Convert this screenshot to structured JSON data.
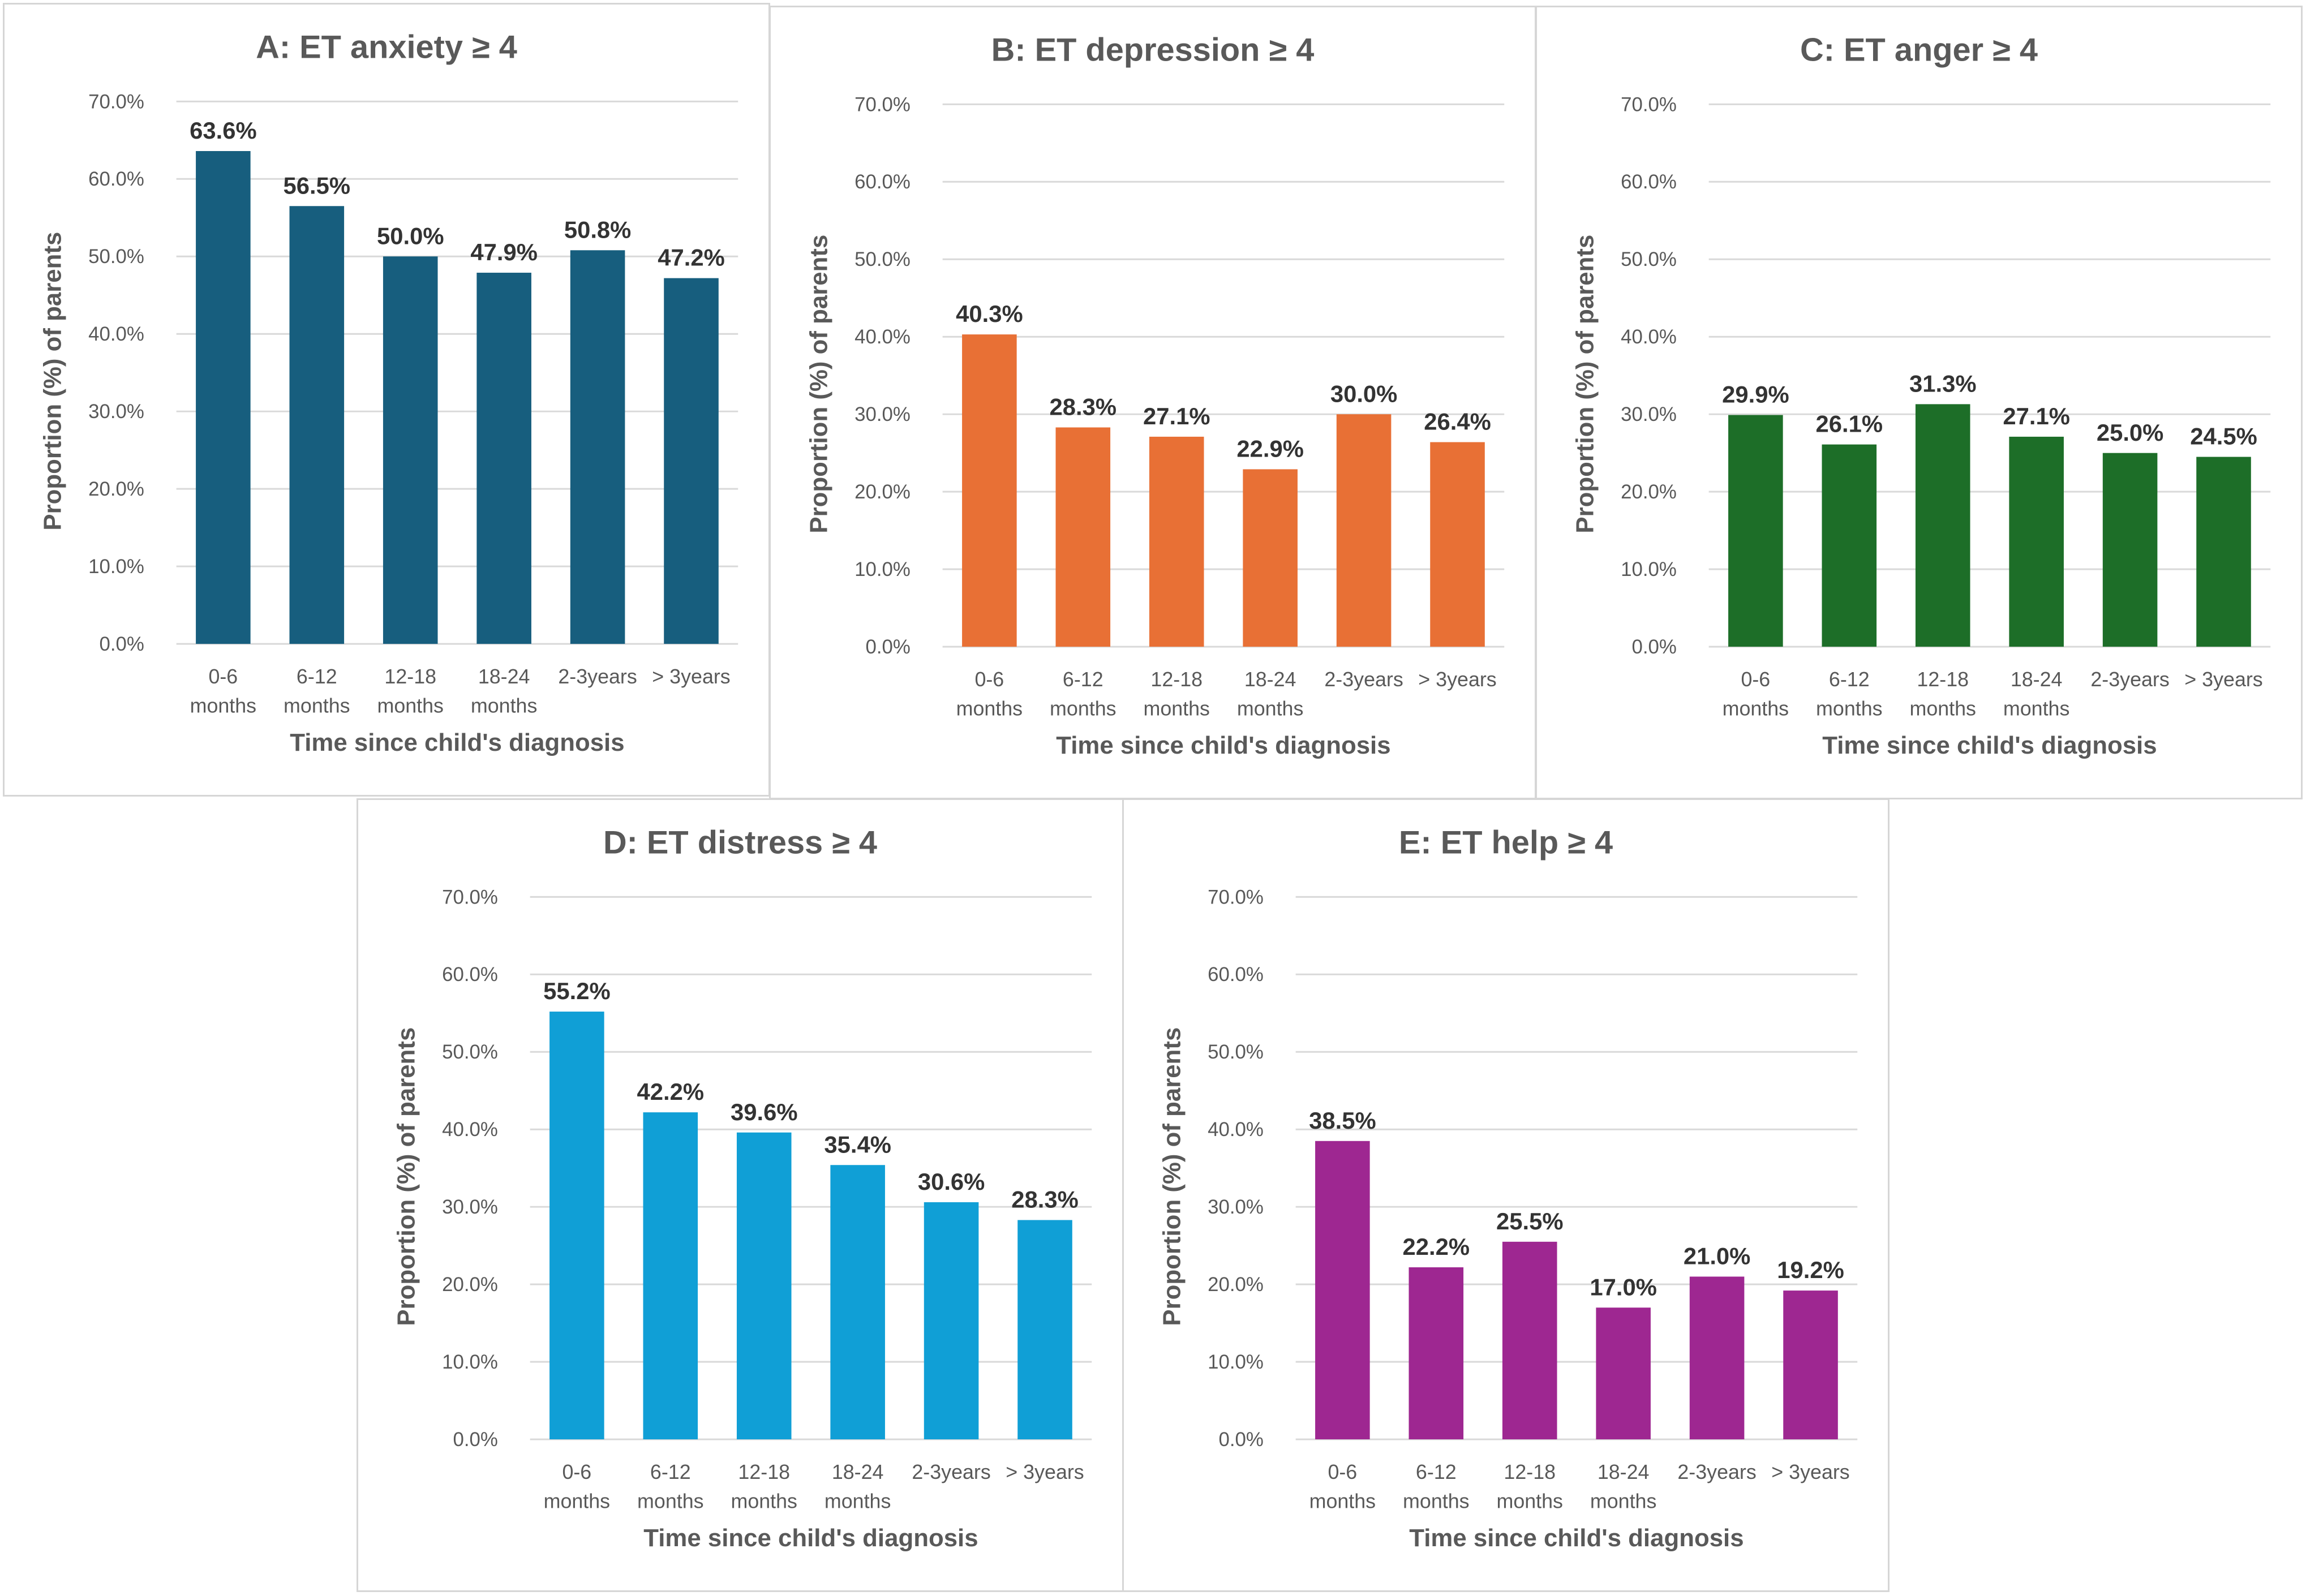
{
  "chart_data": [
    {
      "id": "A",
      "type": "bar",
      "title": "A: ET anxiety ≥ 4",
      "xlabel": "Time since child's diagnosis",
      "ylabel": "Proportion (%) of parents",
      "categories": [
        [
          "0-6",
          "months"
        ],
        [
          "6-12",
          "months"
        ],
        [
          "12-18",
          "months"
        ],
        [
          "18-24",
          "months"
        ],
        [
          "2-3years"
        ],
        [
          "> 3years"
        ]
      ],
      "values": [
        63.6,
        56.5,
        50.0,
        47.9,
        50.8,
        47.2
      ],
      "value_labels": [
        "63.6%",
        "56.5%",
        "50.0%",
        "47.9%",
        "50.8%",
        "47.2%"
      ],
      "yticks": [
        "0.0%",
        "10.0%",
        "20.0%",
        "30.0%",
        "40.0%",
        "50.0%",
        "60.0%",
        "70.0%"
      ],
      "ylim": [
        0,
        70
      ],
      "grid": true,
      "color": "#175e7e"
    },
    {
      "id": "B",
      "type": "bar",
      "title": "B: ET depression ≥ 4",
      "xlabel": "Time since child's diagnosis",
      "ylabel": "Proportion (%) of parents",
      "categories": [
        [
          "0-6",
          "months"
        ],
        [
          "6-12",
          "months"
        ],
        [
          "12-18",
          "months"
        ],
        [
          "18-24",
          "months"
        ],
        [
          "2-3years"
        ],
        [
          "> 3years"
        ]
      ],
      "values": [
        40.3,
        28.3,
        27.1,
        22.9,
        30.0,
        26.4
      ],
      "value_labels": [
        "40.3%",
        "28.3%",
        "27.1%",
        "22.9%",
        "30.0%",
        "26.4%"
      ],
      "yticks": [
        "0.0%",
        "10.0%",
        "20.0%",
        "30.0%",
        "40.0%",
        "50.0%",
        "60.0%",
        "70.0%"
      ],
      "ylim": [
        0,
        70
      ],
      "grid": true,
      "color": "#e87035"
    },
    {
      "id": "C",
      "type": "bar",
      "title": "C: ET anger ≥ 4",
      "xlabel": "Time since child's diagnosis",
      "ylabel": "Proportion (%) of parents",
      "categories": [
        [
          "0-6",
          "months"
        ],
        [
          "6-12",
          "months"
        ],
        [
          "12-18",
          "months"
        ],
        [
          "18-24",
          "months"
        ],
        [
          "2-3years"
        ],
        [
          "> 3years"
        ]
      ],
      "values": [
        29.9,
        26.1,
        31.3,
        27.1,
        25.0,
        24.5
      ],
      "value_labels": [
        "29.9%",
        "26.1%",
        "31.3%",
        "27.1%",
        "25.0%",
        "24.5%"
      ],
      "yticks": [
        "0.0%",
        "10.0%",
        "20.0%",
        "30.0%",
        "40.0%",
        "50.0%",
        "60.0%",
        "70.0%"
      ],
      "ylim": [
        0,
        70
      ],
      "grid": true,
      "color": "#1d6e28"
    },
    {
      "id": "D",
      "type": "bar",
      "title": "D: ET distress ≥ 4",
      "xlabel": "Time since child's diagnosis",
      "ylabel": "Proportion (%) of parents",
      "categories": [
        [
          "0-6",
          "months"
        ],
        [
          "6-12",
          "months"
        ],
        [
          "12-18",
          "months"
        ],
        [
          "18-24",
          "months"
        ],
        [
          "2-3years"
        ],
        [
          "> 3years"
        ]
      ],
      "values": [
        55.2,
        42.2,
        39.6,
        35.4,
        30.6,
        28.3
      ],
      "value_labels": [
        "55.2%",
        "42.2%",
        "39.6%",
        "35.4%",
        "30.6%",
        "28.3%"
      ],
      "yticks": [
        "0.0%",
        "10.0%",
        "20.0%",
        "30.0%",
        "40.0%",
        "50.0%",
        "60.0%",
        "70.0%"
      ],
      "ylim": [
        0,
        70
      ],
      "grid": true,
      "color": "#109fd6"
    },
    {
      "id": "E",
      "type": "bar",
      "title": "E: ET help ≥ 4",
      "xlabel": "Time since child's diagnosis",
      "ylabel": "Proportion (%) of parents",
      "categories": [
        [
          "0-6",
          "months"
        ],
        [
          "6-12",
          "months"
        ],
        [
          "12-18",
          "months"
        ],
        [
          "18-24",
          "months"
        ],
        [
          "2-3years"
        ],
        [
          "> 3years"
        ]
      ],
      "values": [
        38.5,
        22.2,
        25.5,
        17.0,
        21.0,
        19.2
      ],
      "value_labels": [
        "38.5%",
        "22.2%",
        "25.5%",
        "17.0%",
        "21.0%",
        "19.2%"
      ],
      "yticks": [
        "0.0%",
        "10.0%",
        "20.0%",
        "30.0%",
        "40.0%",
        "50.0%",
        "60.0%",
        "70.0%"
      ],
      "ylim": [
        0,
        70
      ],
      "grid": true,
      "color": "#9e2791"
    }
  ]
}
